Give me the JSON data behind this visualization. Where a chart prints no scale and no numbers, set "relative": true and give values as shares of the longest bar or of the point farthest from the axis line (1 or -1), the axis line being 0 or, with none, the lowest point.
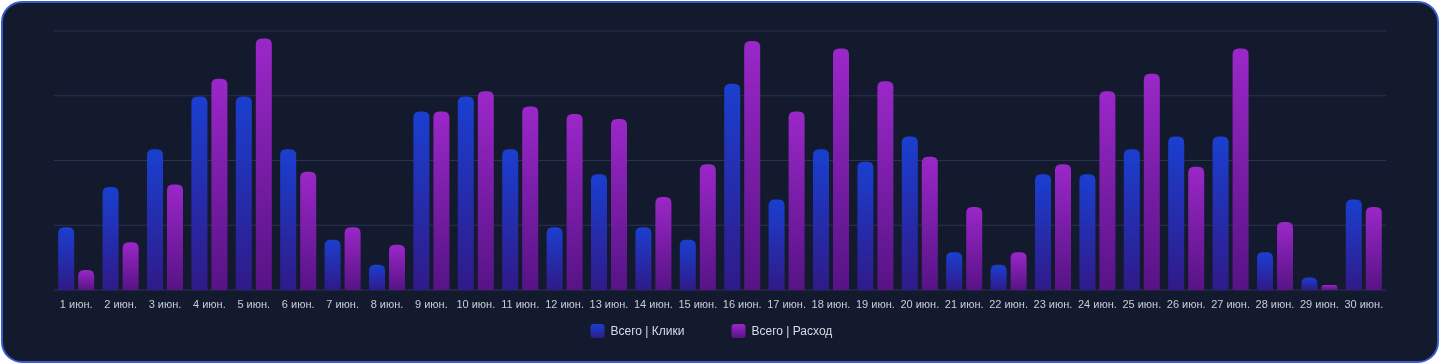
{
  "chart_data": {
    "type": "bar",
    "relative": true,
    "grid": true,
    "legend": "bottom",
    "categories": [
      "1 июн.",
      "2 июн.",
      "3 июн.",
      "4 июн.",
      "5 июн.",
      "6 июн.",
      "7 июн.",
      "8 июн.",
      "9 июн.",
      "10 июн.",
      "11 июн.",
      "12 июн.",
      "13 июн.",
      "14 июн.",
      "15 июн.",
      "16 июн.",
      "17 июн.",
      "18 июн.",
      "19 июн.",
      "20 июн.",
      "21 июн.",
      "22 июн.",
      "23 июн.",
      "24 июн.",
      "25 июн.",
      "26 июн.",
      "27 июн.",
      "28 июн.",
      "29 июн.",
      "30 июн."
    ],
    "series": [
      {
        "name": "Всего | Клики",
        "color": "#1a3fd0",
        "values": [
          0.25,
          0.41,
          0.56,
          0.77,
          0.77,
          0.56,
          0.2,
          0.1,
          0.71,
          0.77,
          0.56,
          0.25,
          0.46,
          0.25,
          0.2,
          0.82,
          0.36,
          0.56,
          0.51,
          0.61,
          0.15,
          0.1,
          0.46,
          0.46,
          0.56,
          0.61,
          0.61,
          0.15,
          0.05,
          0.36
        ]
      },
      {
        "name": "Всего | Расход",
        "color": "#9b27c8",
        "values": [
          0.08,
          0.19,
          0.42,
          0.84,
          1,
          0.47,
          0.25,
          0.18,
          0.71,
          0.79,
          0.73,
          0.7,
          0.68,
          0.37,
          0.5,
          0.99,
          0.71,
          0.96,
          0.83,
          0.53,
          0.33,
          0.15,
          0.5,
          0.79,
          0.86,
          0.49,
          0.96,
          0.27,
          0.02,
          0.33
        ]
      }
    ]
  }
}
